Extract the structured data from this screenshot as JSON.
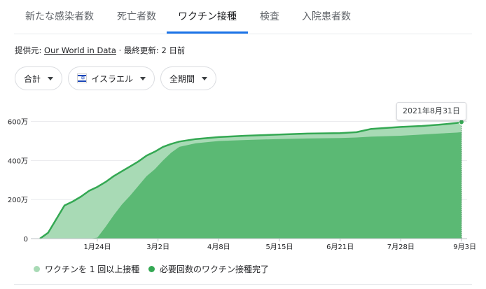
{
  "tabs": [
    {
      "label": "新たな感染者数"
    },
    {
      "label": "死亡者数"
    },
    {
      "label": "ワクチン接種"
    },
    {
      "label": "検査"
    },
    {
      "label": "入院患者数"
    }
  ],
  "source": {
    "prefix": "提供元: ",
    "link": "Our World in Data",
    "updated": " · 最終更新: 2 日前"
  },
  "filters": {
    "metric": "合計",
    "country": "イスラエル",
    "period": "全期間"
  },
  "tooltip": {
    "date": "2021年8月31日"
  },
  "colors": {
    "at_least_one": "#a8dab5",
    "fully": "#5bb974",
    "line": "#34a853"
  },
  "legend": [
    {
      "label": "ワクチンを 1 回以上接種"
    },
    {
      "label": "必要回数のワクチン接種完了"
    }
  ],
  "chart_data": {
    "type": "area",
    "x_ticks": [
      "1月24日",
      "3月2日",
      "4月8日",
      "5月15日",
      "6月21日",
      "7月28日",
      "9月3日"
    ],
    "y_ticks": [
      "0",
      "200万",
      "400万",
      "600万"
    ],
    "y_unit": "万",
    "ylim": [
      0,
      620
    ],
    "grid": true,
    "legend_position": "bottom-left",
    "x": [
      "2020-12-20",
      "2020-12-25",
      "2020-12-30",
      "2021-01-04",
      "2021-01-09",
      "2021-01-14",
      "2021-01-19",
      "2021-01-24",
      "2021-01-29",
      "2021-02-03",
      "2021-02-08",
      "2021-02-13",
      "2021-02-18",
      "2021-02-23",
      "2021-02-28",
      "2021-03-05",
      "2021-03-10",
      "2021-03-15",
      "2021-03-25",
      "2021-04-08",
      "2021-04-24",
      "2021-05-15",
      "2021-06-01",
      "2021-06-21",
      "2021-07-01",
      "2021-07-10",
      "2021-07-28",
      "2021-08-10",
      "2021-08-20",
      "2021-08-31",
      "2021-09-03"
    ],
    "series": [
      {
        "name": "ワクチンを 1 回以上接種",
        "values": [
          0,
          30,
          100,
          170,
          190,
          215,
          245,
          265,
          290,
          320,
          345,
          370,
          395,
          425,
          445,
          470,
          485,
          497,
          510,
          520,
          527,
          533,
          538,
          540,
          545,
          562,
          572,
          577,
          583,
          592,
          597
        ]
      },
      {
        "name": "必要回数のワクチン接種完了",
        "values": [
          0,
          0,
          0,
          0,
          0,
          0,
          0,
          5,
          60,
          120,
          175,
          220,
          270,
          320,
          355,
          400,
          440,
          470,
          488,
          500,
          505,
          510,
          513,
          515,
          518,
          522,
          527,
          533,
          538,
          543,
          545
        ]
      }
    ]
  }
}
